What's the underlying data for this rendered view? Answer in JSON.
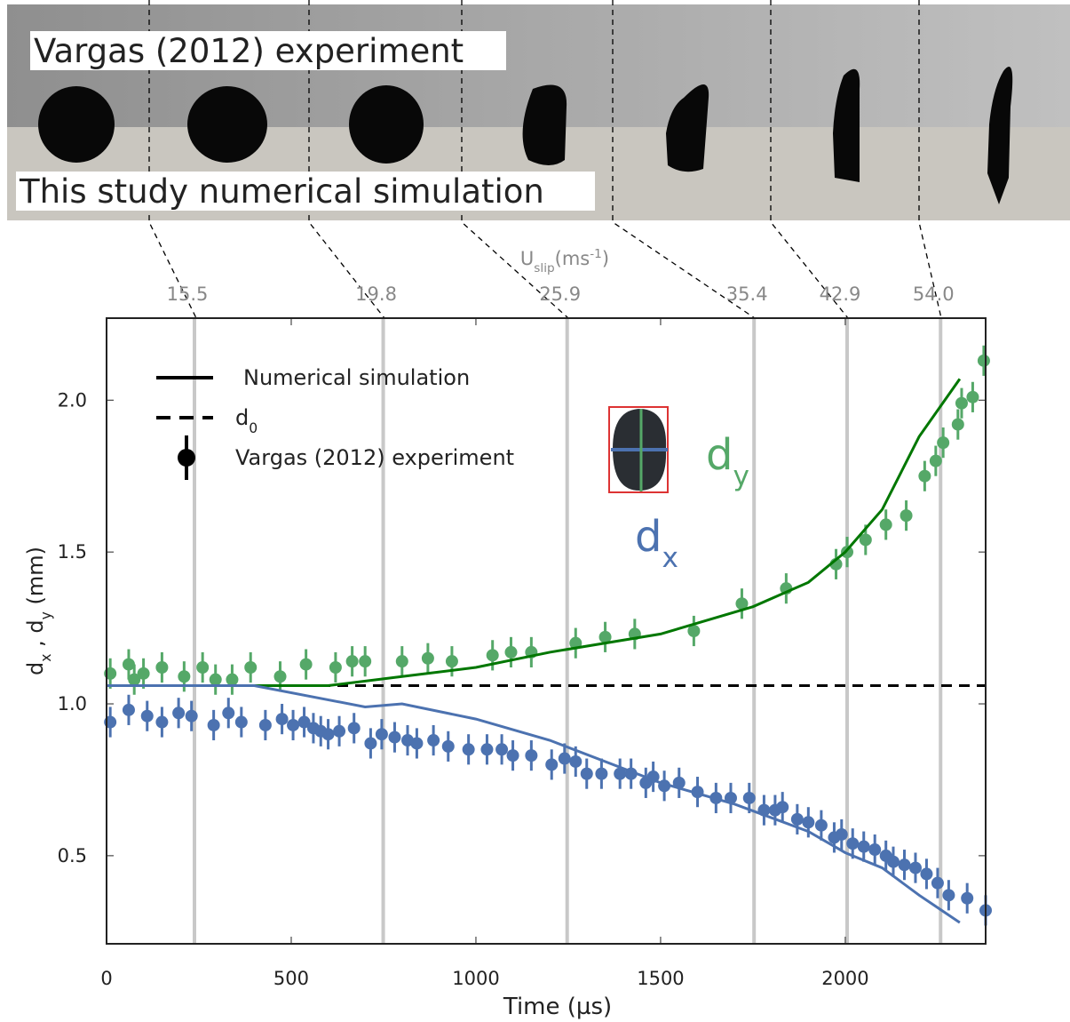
{
  "chart_data": {
    "type": "errorbar_line",
    "strip_labels": {
      "top": "Vargas (2012) experiment",
      "bottom": "This study numerical simulation"
    },
    "uslip_title": [
      {
        "t": "U"
      },
      {
        "t": "slip",
        "sub": true
      },
      {
        "t": "(ms"
      },
      {
        "t": "-1",
        "sup": true
      },
      {
        "t": ")"
      }
    ],
    "vlines": {
      "x": [
        238,
        749,
        1247,
        1753,
        2005,
        2258
      ],
      "labels": [
        "15.5",
        "19.8",
        "25.9",
        "35.4",
        "42.9",
        "54.0"
      ],
      "color": "#c8c8c8"
    },
    "xlabel": "Time   (µs)",
    "ylabel": [
      {
        "t": "d"
      },
      {
        "t": "x",
        "sub": true
      },
      {
        "t": " , d"
      },
      {
        "t": "y",
        "sub": true
      },
      {
        "t": "    (mm)"
      }
    ],
    "xlim": [
      0,
      2380
    ],
    "ylim": [
      0.21,
      2.27
    ],
    "xticks": [
      0,
      500,
      1000,
      1500,
      2000
    ],
    "yticks": [
      0.5,
      {
        "value": 1,
        "label": "1.0"
      },
      1.5,
      {
        "value": 2,
        "label": "2.0"
      }
    ],
    "legend": [
      {
        "label": [
          {
            "t": "Numerical simulation"
          }
        ],
        "style": "solid"
      },
      {
        "label": [
          {
            "t": "d"
          },
          {
            "t": "0",
            "sub": true
          }
        ],
        "style": "dashed"
      },
      {
        "label": [
          {
            "t": "Vargas (2012) experiment"
          }
        ],
        "style": "errorbar"
      }
    ],
    "annotations": [
      {
        "label": [
          {
            "t": "d"
          },
          {
            "t": "y",
            "sub": true
          }
        ],
        "color": "#55a868"
      },
      {
        "label": [
          {
            "t": "d"
          },
          {
            "t": "x",
            "sub": true
          }
        ],
        "color": "#4c72b0"
      }
    ],
    "d0": 1.06,
    "series": [
      {
        "kind": "points",
        "color": "#55a868",
        "error": 0.05,
        "x": [
          10,
          60,
          75,
          100,
          150,
          210,
          260,
          295,
          340,
          390,
          470,
          540,
          620,
          665,
          700,
          800,
          870,
          935,
          1045,
          1095,
          1150,
          1270,
          1350,
          1430,
          1590,
          1720,
          1840,
          1975,
          2005,
          2055,
          2110,
          2165,
          2215,
          2245,
          2265,
          2305,
          2315,
          2345,
          2375
        ],
        "values": [
          1.1,
          1.13,
          1.08,
          1.1,
          1.12,
          1.09,
          1.12,
          1.08,
          1.08,
          1.12,
          1.09,
          1.13,
          1.12,
          1.14,
          1.14,
          1.14,
          1.15,
          1.14,
          1.16,
          1.17,
          1.17,
          1.2,
          1.22,
          1.23,
          1.24,
          1.33,
          1.38,
          1.46,
          1.5,
          1.54,
          1.59,
          1.62,
          1.75,
          1.8,
          1.86,
          1.92,
          1.99,
          2.01,
          2.13
        ]
      },
      {
        "kind": "points",
        "color": "#4c72b0",
        "error": 0.05,
        "x": [
          10,
          60,
          110,
          150,
          195,
          230,
          290,
          330,
          365,
          430,
          475,
          505,
          535,
          560,
          580,
          600,
          630,
          670,
          715,
          745,
          780,
          815,
          840,
          885,
          925,
          980,
          1030,
          1070,
          1100,
          1150,
          1205,
          1240,
          1270,
          1300,
          1340,
          1390,
          1420,
          1460,
          1480,
          1510,
          1550,
          1600,
          1650,
          1690,
          1740,
          1780,
          1810,
          1830,
          1870,
          1900,
          1935,
          1970,
          1990,
          2020,
          2050,
          2080,
          2110,
          2130,
          2160,
          2190,
          2220,
          2250,
          2280,
          2330,
          2380
        ],
        "values": [
          0.94,
          0.98,
          0.96,
          0.94,
          0.97,
          0.96,
          0.93,
          0.97,
          0.94,
          0.93,
          0.95,
          0.93,
          0.94,
          0.92,
          0.91,
          0.9,
          0.91,
          0.92,
          0.87,
          0.9,
          0.89,
          0.88,
          0.87,
          0.88,
          0.86,
          0.85,
          0.85,
          0.85,
          0.83,
          0.83,
          0.8,
          0.82,
          0.81,
          0.77,
          0.77,
          0.77,
          0.77,
          0.74,
          0.76,
          0.73,
          0.74,
          0.71,
          0.69,
          0.69,
          0.69,
          0.65,
          0.65,
          0.66,
          0.62,
          0.61,
          0.6,
          0.56,
          0.57,
          0.54,
          0.53,
          0.52,
          0.5,
          0.48,
          0.47,
          0.46,
          0.44,
          0.41,
          0.37,
          0.36,
          0.32
        ]
      },
      {
        "kind": "line",
        "color": "#007700",
        "x": [
          0,
          600,
          800,
          1000,
          1200,
          1500,
          1750,
          1900,
          2000,
          2100,
          2200,
          2310
        ],
        "values": [
          1.06,
          1.06,
          1.09,
          1.12,
          1.17,
          1.23,
          1.32,
          1.4,
          1.5,
          1.64,
          1.88,
          2.07
        ]
      },
      {
        "kind": "line",
        "color": "#4c72b0",
        "x": [
          0,
          400,
          700,
          800,
          1000,
          1200,
          1500,
          1700,
          1900,
          2000,
          2100,
          2200,
          2310
        ],
        "values": [
          1.06,
          1.06,
          0.99,
          1.0,
          0.95,
          0.88,
          0.74,
          0.67,
          0.58,
          0.51,
          0.46,
          0.37,
          0.28
        ]
      }
    ]
  }
}
